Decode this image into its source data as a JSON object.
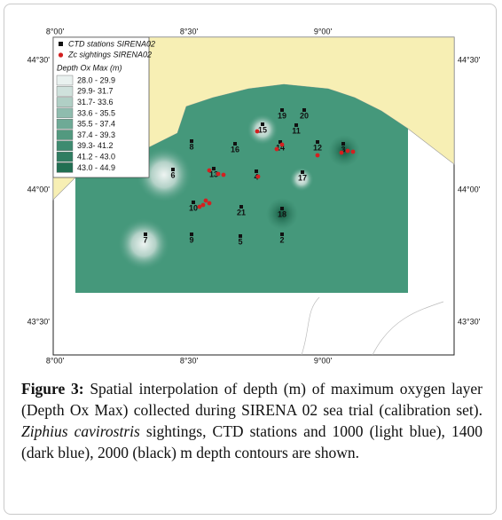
{
  "figure": {
    "lon_ticks": [
      "8°00'",
      "8°30'",
      "9°00'"
    ],
    "lat_ticks": [
      "44°30'",
      "44°00'",
      "43°30'"
    ],
    "legend": {
      "ctd": "CTD stations SIRENA02",
      "sightings": "Zc sightings SIRENA02",
      "title": "Depth Ox Max (m)",
      "classes": [
        {
          "label": "28.0 - 29.9",
          "color": "#e9f1ef"
        },
        {
          "label": "29.9- 31.7",
          "color": "#cfe1dc"
        },
        {
          "label": "31.7- 33.6",
          "color": "#b0cfc5"
        },
        {
          "label": "33.6 - 35.5",
          "color": "#8fbcae"
        },
        {
          "label": "35.5 - 37.4",
          "color": "#6eaa96"
        },
        {
          "label": "37.4 - 39.3",
          "color": "#52997f"
        },
        {
          "label": "39.3- 41.2",
          "color": "#3e8b70"
        },
        {
          "label": "41.2 - 43.0",
          "color": "#2f7d61"
        },
        {
          "label": "43.0 - 44.9",
          "color": "#216f52"
        }
      ]
    },
    "stations": [
      "19",
      "20",
      "11",
      "15",
      "16",
      "14",
      "12",
      "3",
      "8",
      "6",
      "13",
      "4",
      "17",
      "10",
      "21",
      "18",
      "7",
      "9",
      "5",
      "2"
    ]
  },
  "caption": {
    "label": "Figure 3:",
    "text_1": " Spatial interpolation of depth (m) of maximum oxygen layer (Depth Ox Max) collected during SIRENA 02 sea trial (calibration set). ",
    "species": "Ziphius cavirostris",
    "text_2": " sightings, CTD stations and 1000 (light blue), 1400 (dark blue), 2000 (black) m depth contours are shown."
  }
}
